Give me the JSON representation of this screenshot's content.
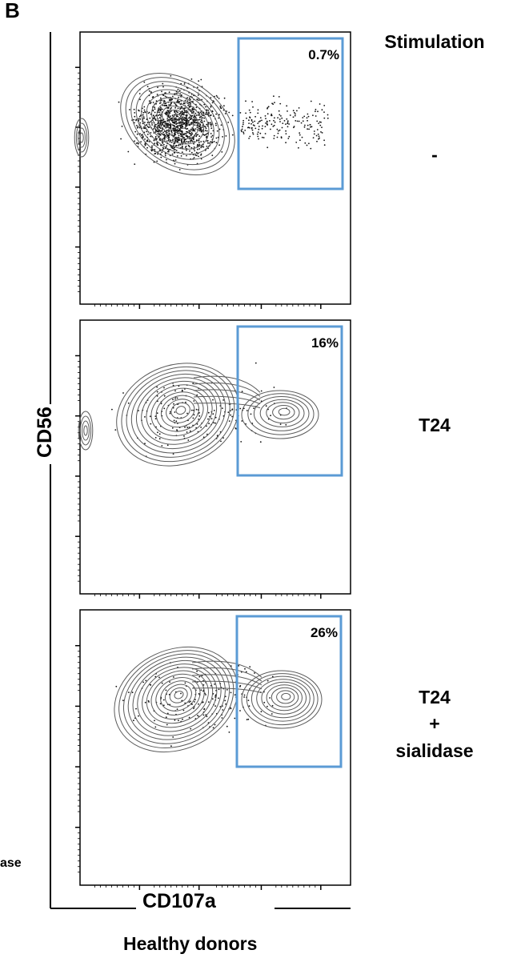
{
  "figure": {
    "panel_letter": "B",
    "header": "Stimulation",
    "y_axis_label": "CD56",
    "x_axis_label": "CD107a",
    "footer": "Healthy donors",
    "cut_off_text": "ase",
    "gate_color": "#5b9bd5",
    "contour_color": "#5a5a5a",
    "panels": [
      {
        "condition": "-",
        "gate_percent": "0.7%"
      },
      {
        "condition": "T24",
        "gate_percent": "16%"
      },
      {
        "condition_lines": [
          "T24",
          "+",
          "sialidase"
        ],
        "gate_percent": "26%"
      }
    ]
  }
}
